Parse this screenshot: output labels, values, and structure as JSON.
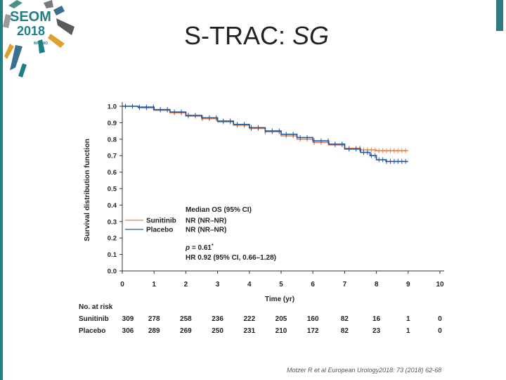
{
  "header": {
    "title_main": "S-TRAC:",
    "title_italic": "SG",
    "logo": {
      "line1": "SEOM",
      "line2": "2018",
      "city": "MADRID"
    }
  },
  "colors": {
    "sunitinib": "#e8804b",
    "placebo": "#1f57a6",
    "accent_teal": "#1f7f86"
  },
  "chart_data": {
    "type": "line",
    "subtype": "kaplan-meier",
    "title": "",
    "xlabel": "Time (yr)",
    "ylabel": "Survival distribution function",
    "xlim": [
      0,
      10
    ],
    "ylim": [
      0,
      1.0
    ],
    "x_ticks": [
      "0",
      "1",
      "2",
      "3",
      "4",
      "5",
      "6",
      "7",
      "8",
      "9",
      "10"
    ],
    "y_ticks": [
      "0.0",
      "0.1",
      "0.2",
      "0.3",
      "0.4",
      "0.5",
      "0.6",
      "0.7",
      "0.8",
      "0.9",
      "1.0"
    ],
    "series": [
      {
        "name": "Sunitinib",
        "median": "NR (NR–NR)",
        "color": "#e8804b",
        "x": [
          0,
          0.5,
          1,
          1.5,
          2,
          2.5,
          3,
          3.5,
          4,
          4.5,
          5,
          5.5,
          6,
          6.5,
          7,
          7.5,
          8,
          8.3,
          9
        ],
        "y": [
          1.0,
          0.99,
          0.975,
          0.96,
          0.94,
          0.925,
          0.905,
          0.885,
          0.865,
          0.845,
          0.82,
          0.8,
          0.78,
          0.765,
          0.745,
          0.735,
          0.73,
          0.73,
          0.73
        ]
      },
      {
        "name": "Placebo",
        "median": "NR (NR–NR)",
        "color": "#1f57a6",
        "x": [
          0,
          0.5,
          1,
          1.5,
          2,
          2.5,
          3,
          3.5,
          4,
          4.5,
          5,
          5.5,
          6,
          6.5,
          7,
          7.5,
          7.8,
          8,
          8.3,
          9
        ],
        "y": [
          1.0,
          0.995,
          0.98,
          0.965,
          0.945,
          0.93,
          0.91,
          0.89,
          0.87,
          0.85,
          0.83,
          0.81,
          0.79,
          0.77,
          0.74,
          0.72,
          0.7,
          0.675,
          0.665,
          0.665
        ]
      }
    ],
    "legend": {
      "header": "Median OS (95% CI)",
      "position": "bottom-left"
    },
    "annotations": {
      "p_label": "p",
      "p_value": "= 0.61",
      "p_superscript": "*",
      "hr": "HR 0.92 (95% CI, 0.66–1.28)"
    },
    "at_risk": {
      "header": "No. at risk",
      "rows": [
        {
          "name": "Sunitinib",
          "values": [
            "309",
            "278",
            "258",
            "236",
            "222",
            "205",
            "160",
            "82",
            "16",
            "1",
            "0"
          ]
        },
        {
          "name": "Placebo",
          "values": [
            "306",
            "289",
            "269",
            "250",
            "231",
            "210",
            "172",
            "82",
            "23",
            "1",
            "0"
          ]
        }
      ]
    }
  },
  "footer": {
    "citation": "Motzer R et al European Urology2018: 73 (2018) 62-68"
  }
}
